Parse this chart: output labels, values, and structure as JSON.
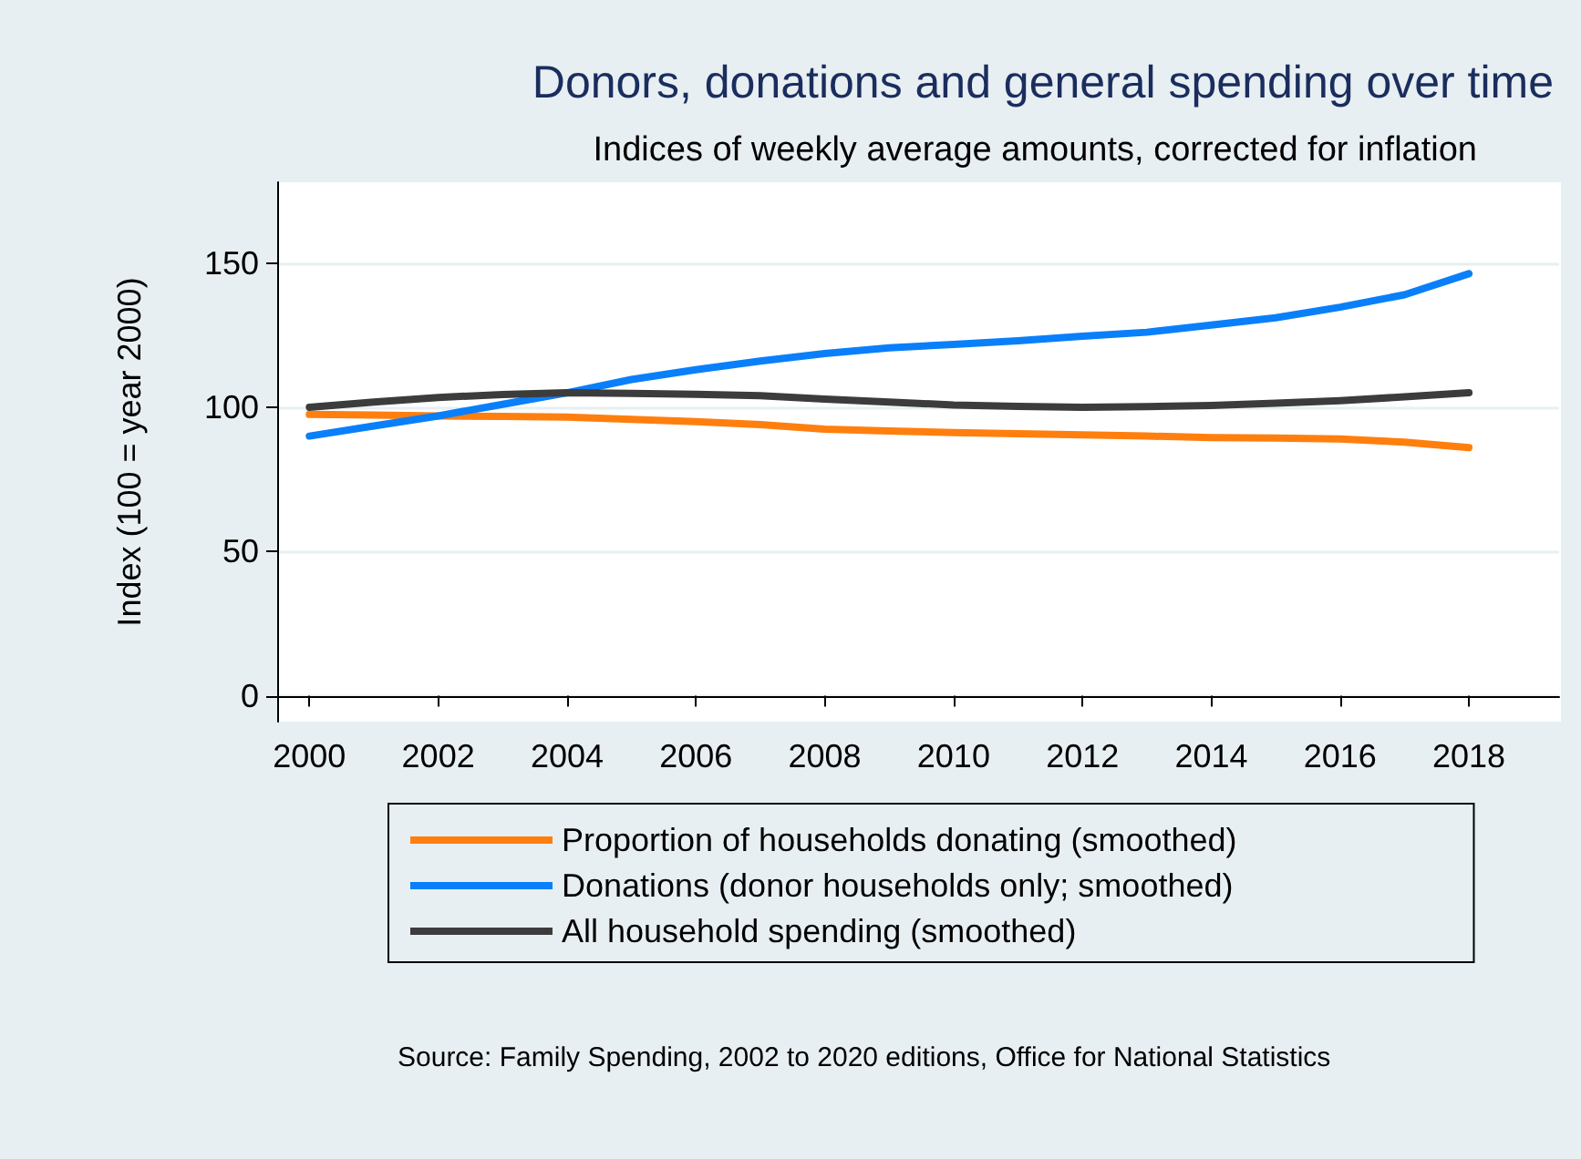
{
  "chart_data": {
    "type": "line",
    "title": "Donors, donations and general spending over time",
    "subtitle": "Indices of weekly average amounts, corrected for inflation",
    "ylabel": "Index (100 = year 2000)",
    "x": [
      2000,
      2001,
      2002,
      2003,
      2004,
      2005,
      2006,
      2007,
      2008,
      2009,
      2010,
      2011,
      2012,
      2013,
      2014,
      2015,
      2016,
      2017,
      2018
    ],
    "series": [
      {
        "name": "Proportion of households donating (smoothed)",
        "color": "#ff7f0e",
        "values": [
          97.5,
          97.3,
          97,
          96.8,
          96.6,
          95.8,
          95,
          94,
          92.4,
          91.8,
          91.2,
          90.8,
          90.4,
          90,
          89.5,
          89.3,
          89,
          87.9,
          86
        ]
      },
      {
        "name": "Donations (donor households only; smoothed)",
        "color": "#0a7ffa",
        "values": [
          90,
          93.5,
          97,
          101,
          105,
          109.6,
          113,
          116,
          118.6,
          120.6,
          121.8,
          123,
          124.6,
          126,
          128.5,
          131,
          134.7,
          139,
          146.3
        ]
      },
      {
        "name": "All household spending (smoothed)",
        "color": "#3c3c3c",
        "values": [
          100,
          101.8,
          103.4,
          104.4,
          105,
          104.8,
          104.5,
          104,
          102.8,
          101.8,
          100.8,
          100.3,
          100,
          100.2,
          100.6,
          101.4,
          102.3,
          103.6,
          105
        ]
      }
    ],
    "xlim": [
      1999.5,
      2019.4
    ],
    "xticks": [
      2000,
      2002,
      2004,
      2006,
      2008,
      2010,
      2012,
      2014,
      2016,
      2018
    ],
    "ylim": [
      -9,
      178
    ],
    "yticks": [
      0,
      50,
      100,
      150
    ],
    "grid": "y",
    "legend": "bottom",
    "marker": "none",
    "line_style": "solid",
    "annotations": [
      "Source: Family Spending, 2002 to 2020 editions, Office for National Statistics"
    ]
  }
}
